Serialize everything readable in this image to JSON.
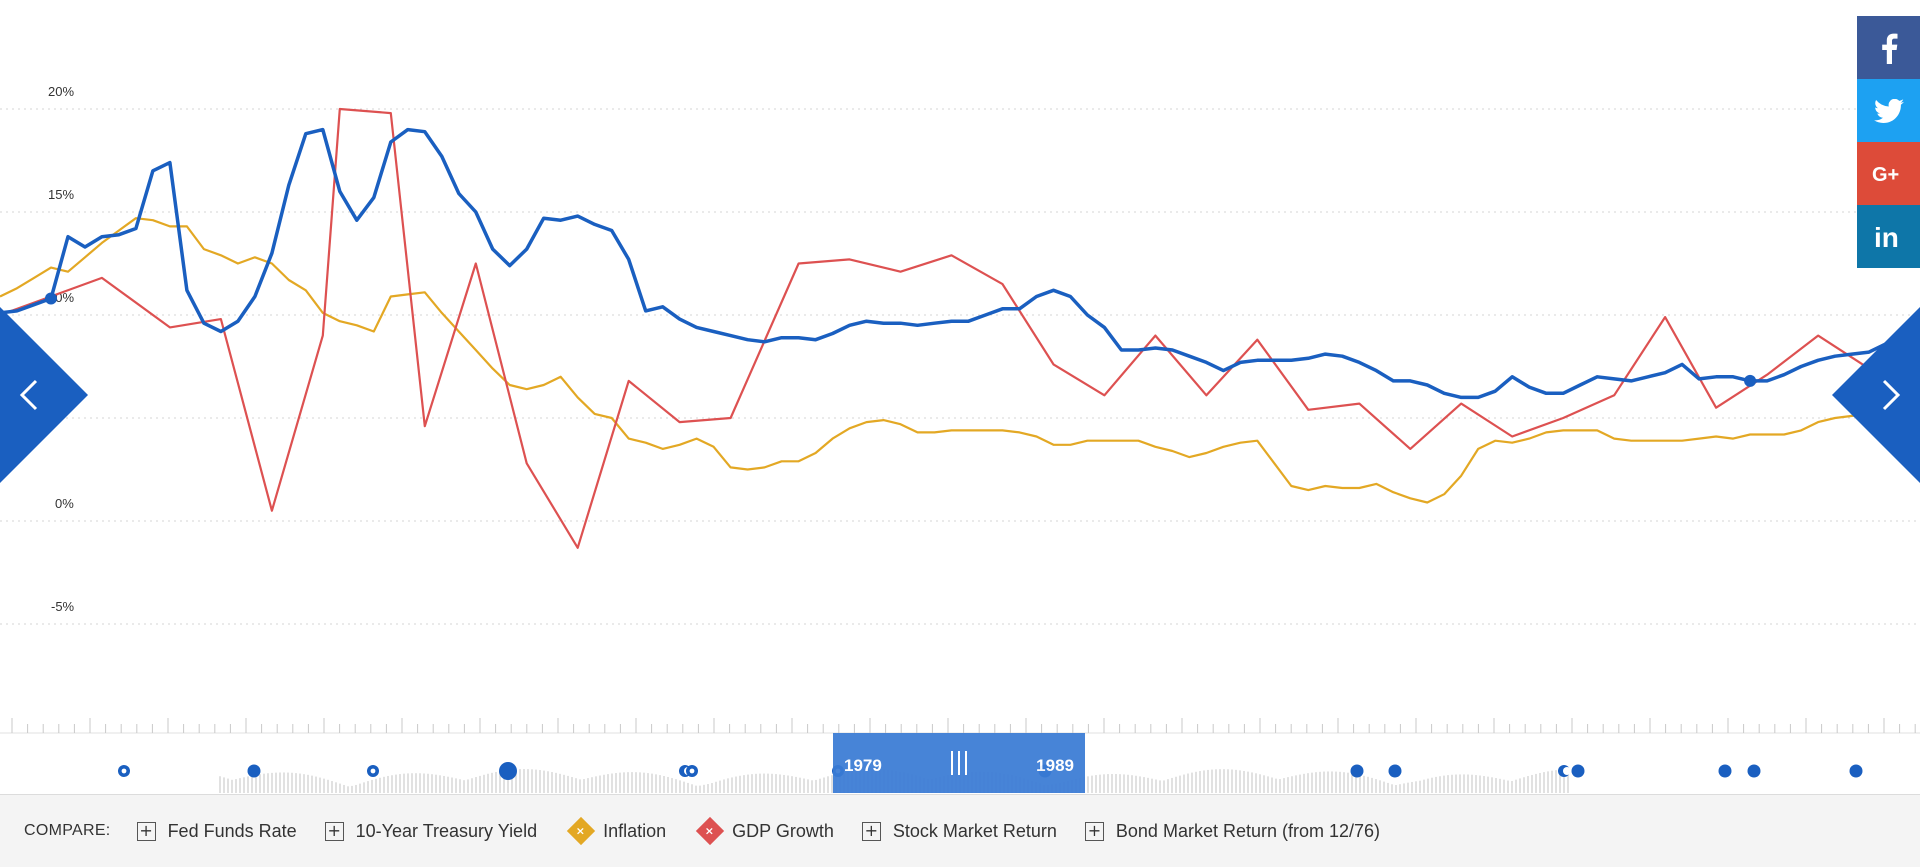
{
  "chart_data": {
    "type": "line",
    "y_ticks": [
      "20%",
      "15%",
      "10%",
      "0%",
      "-5%"
    ],
    "y_tick_values": [
      20,
      15,
      10,
      0,
      -5
    ],
    "ylim": [
      -6.5,
      22
    ],
    "grid": true,
    "series": [
      {
        "key": "fed",
        "color": "#1a5fc0",
        "values": [
          10.1,
          10.2,
          10.5,
          10.8,
          13.8,
          13.3,
          13.8,
          13.9,
          14.2,
          17.0,
          17.4,
          11.2,
          9.6,
          9.2,
          9.7,
          10.9,
          13.0,
          16.3,
          18.8,
          19.0,
          16.0,
          14.6,
          15.7,
          18.4,
          19.0,
          18.9,
          17.7,
          15.9,
          15.0,
          13.2,
          12.4,
          13.2,
          14.7,
          14.6,
          14.8,
          14.4,
          14.1,
          12.7,
          10.2,
          10.4,
          9.8,
          9.4,
          9.2,
          9.0,
          8.8,
          8.7,
          8.9,
          8.9,
          8.8,
          9.1,
          9.5,
          9.7,
          9.6,
          9.6,
          9.5,
          9.6,
          9.7,
          9.7,
          10.0,
          10.3,
          10.3,
          10.9,
          11.2,
          10.9,
          10.0,
          9.4,
          8.3,
          8.3,
          8.4,
          8.3,
          8.0,
          7.7,
          7.3,
          7.7,
          7.8,
          7.8,
          7.8,
          7.9,
          8.1,
          8.0,
          7.7,
          7.3,
          6.8,
          6.8,
          6.6,
          6.2,
          6.0,
          6.0,
          6.3,
          7.0,
          6.5,
          6.2,
          6.2,
          6.6,
          7.0,
          6.9,
          6.8,
          7.0,
          7.2,
          7.6,
          6.9,
          7.0,
          7.0,
          6.8,
          6.8,
          7.1,
          7.5,
          7.8,
          8.0,
          8.1,
          8.2,
          8.6,
          8.9,
          9.3,
          9.9,
          9.9
        ],
        "dots": [
          3,
          103
        ]
      },
      {
        "key": "gdp",
        "color": "#dd5151",
        "values": [
          10.0,
          11.8,
          9.4,
          9.8,
          0.5,
          9.0,
          20.0,
          19.8,
          4.6,
          12.5,
          2.8,
          -1.3,
          6.8,
          4.8,
          5.0,
          12.5,
          12.7,
          12.1,
          12.9,
          11.5,
          7.6,
          6.1,
          9.0,
          6.1,
          8.8,
          5.4,
          5.7,
          3.5,
          5.7,
          4.1,
          5.0,
          6.1,
          9.9,
          5.5,
          7.1,
          9.0,
          7.4,
          6.8
        ],
        "x_points": [
          0,
          6,
          10,
          13,
          16,
          19,
          20,
          23,
          25,
          28,
          31,
          34,
          37,
          40,
          43,
          47,
          50,
          53,
          56,
          59,
          62,
          65,
          68,
          71,
          74,
          77,
          80,
          83,
          86,
          89,
          92,
          95,
          98,
          101,
          104,
          107,
          110,
          113
        ]
      },
      {
        "key": "inflation",
        "color": "#e3a824",
        "values": [
          10.9,
          11.3,
          11.8,
          12.3,
          12.1,
          12.8,
          13.5,
          14.1,
          14.7,
          14.6,
          14.3,
          14.3,
          13.2,
          12.9,
          12.5,
          12.8,
          12.5,
          11.7,
          11.2,
          10.1,
          9.7,
          9.5,
          9.2,
          10.9,
          11.0,
          11.1,
          10.1,
          9.2,
          8.3,
          7.4,
          6.6,
          6.4,
          6.6,
          7.0,
          6.0,
          5.2,
          5.0,
          4.0,
          3.8,
          3.5,
          3.7,
          4.0,
          3.6,
          2.6,
          2.5,
          2.6,
          2.9,
          2.9,
          3.3,
          4.0,
          4.5,
          4.8,
          4.9,
          4.7,
          4.3,
          4.3,
          4.4,
          4.4,
          4.4,
          4.4,
          4.3,
          4.1,
          3.7,
          3.7,
          3.9,
          3.9,
          3.9,
          3.9,
          3.6,
          3.4,
          3.1,
          3.3,
          3.6,
          3.8,
          3.9,
          2.8,
          1.7,
          1.5,
          1.7,
          1.6,
          1.6,
          1.8,
          1.4,
          1.1,
          0.9,
          1.3,
          2.2,
          3.5,
          3.9,
          3.8,
          4.0,
          4.3,
          4.4,
          4.4,
          4.4,
          4.0,
          3.9,
          3.9,
          3.9,
          3.9,
          4.0,
          4.1,
          4.0,
          4.2,
          4.2,
          4.2,
          4.4,
          4.8,
          5.0,
          5.1,
          5.2,
          5.3,
          5.3,
          5.5,
          5.6,
          5.8
        ]
      }
    ],
    "timeline_dots": [
      {
        "x": 124,
        "style": "ring"
      },
      {
        "x": 254,
        "style": "solid"
      },
      {
        "x": 373,
        "style": "ring"
      },
      {
        "x": 508,
        "style": "big"
      },
      {
        "x": 685,
        "style": "half"
      },
      {
        "x": 692,
        "style": "ring"
      },
      {
        "x": 838,
        "style": "ring"
      },
      {
        "x": 1045,
        "style": "solid"
      },
      {
        "x": 1357,
        "style": "solid"
      },
      {
        "x": 1395,
        "style": "solid"
      },
      {
        "x": 1564,
        "style": "half"
      },
      {
        "x": 1578,
        "style": "solid"
      },
      {
        "x": 1725,
        "style": "solid"
      },
      {
        "x": 1754,
        "style": "solid"
      },
      {
        "x": 1856,
        "style": "solid"
      }
    ]
  },
  "range_selector": {
    "start": "1979",
    "end": "1989"
  },
  "compare": {
    "label": "COMPARE:",
    "items": [
      {
        "label": "Fed Funds Rate",
        "state": "add",
        "color": "#555555"
      },
      {
        "label": "10-Year Treasury Yield",
        "state": "add",
        "color": "#555555"
      },
      {
        "label": "Inflation",
        "state": "active",
        "color": "#e3a824"
      },
      {
        "label": "GDP Growth",
        "state": "active",
        "color": "#dd5151"
      },
      {
        "label": "Stock Market Return",
        "state": "add",
        "color": "#555555"
      },
      {
        "label": "Bond Market Return (from 12/76)",
        "state": "add",
        "color": "#555555"
      }
    ]
  },
  "social": [
    {
      "name": "facebook-icon",
      "color": "#3b5998"
    },
    {
      "name": "twitter-icon",
      "color": "#1da1f2"
    },
    {
      "name": "google-plus-icon",
      "color": "#dd4b39"
    },
    {
      "name": "linkedin-icon",
      "color": "#0e76a8"
    }
  ]
}
